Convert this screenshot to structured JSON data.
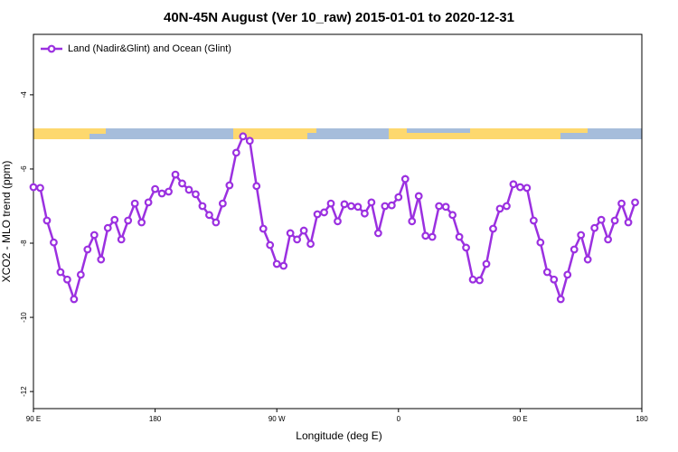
{
  "chart_data": {
    "type": "line",
    "title": "40N-45N August (Ver 10_raw)   2015-01-01 to 2020-12-31",
    "xlabel": "Longitude (deg E)",
    "ylabel": "XCO2 - MLO trend (ppm)",
    "xlim": [
      90,
      540
    ],
    "ylim": [
      -12.46,
      -2.37
    ],
    "xticks": [
      {
        "value": 90,
        "label": "90 E"
      },
      180,
      {
        "value": 270,
        "label": "90 W"
      },
      {
        "value": 360,
        "label": "0"
      },
      {
        "value": 450,
        "label": "90 E"
      },
      {
        "value": 540,
        "label": "180"
      }
    ],
    "yticks": [
      -4,
      -6,
      -8,
      -10,
      -12
    ],
    "legend": "upper left",
    "x": [
      90,
      95,
      100,
      105,
      110,
      115,
      120,
      125,
      130,
      135,
      140,
      145,
      150,
      155,
      160,
      165,
      170,
      175,
      180,
      185,
      190,
      195,
      200,
      205,
      210,
      215,
      220,
      225,
      230,
      235,
      240,
      245,
      250,
      255,
      260,
      265,
      270,
      275,
      280,
      285,
      290,
      295,
      300,
      305,
      310,
      315,
      320,
      325,
      330,
      335,
      340,
      345,
      350,
      355,
      360,
      365,
      370,
      375,
      380,
      385,
      390,
      395,
      400,
      405,
      410,
      415,
      420,
      425,
      430,
      435,
      440,
      445,
      450,
      455,
      460,
      465,
      470,
      475,
      480,
      485,
      490,
      495,
      500,
      505,
      510,
      515,
      520,
      525,
      530,
      535
    ],
    "series": [
      {
        "name": "Land (Nadir&Glint) and Ocean (Glint)",
        "color": "#9b30e0",
        "values": [
          -6.49,
          -6.51,
          -7.39,
          -7.98,
          -8.78,
          -8.98,
          -9.51,
          -8.85,
          -8.17,
          -7.78,
          -8.44,
          -7.59,
          -7.37,
          -7.9,
          -7.39,
          -6.93,
          -7.44,
          -6.9,
          -6.54,
          -6.66,
          -6.61,
          -6.15,
          -6.39,
          -6.56,
          -6.68,
          -7.0,
          -7.24,
          -7.44,
          -6.93,
          -6.44,
          -5.56,
          -5.12,
          -5.24,
          -6.46,
          -7.61,
          -8.05,
          -8.56,
          -8.61,
          -7.73,
          -7.9,
          -7.66,
          -8.02,
          -7.22,
          -7.17,
          -6.93,
          -7.41,
          -6.95,
          -7.0,
          -7.02,
          -7.2,
          -6.9,
          -7.73,
          -7.0,
          -6.98,
          -6.76,
          -6.27,
          -7.41,
          -6.73,
          -7.8,
          -7.83,
          -7.0,
          -7.02,
          -7.24,
          -7.83,
          -8.12,
          -8.98,
          -9.0,
          -8.56,
          -7.61,
          -7.07,
          -7.0,
          -6.41,
          -6.49,
          -6.51,
          -7.39,
          -7.98,
          -8.78,
          -8.98,
          -9.51,
          -8.85,
          -8.17,
          -7.78,
          -8.44,
          -7.59,
          -7.37,
          -7.9,
          -7.39,
          -6.93,
          -7.44,
          -6.9
        ]
      }
    ]
  }
}
